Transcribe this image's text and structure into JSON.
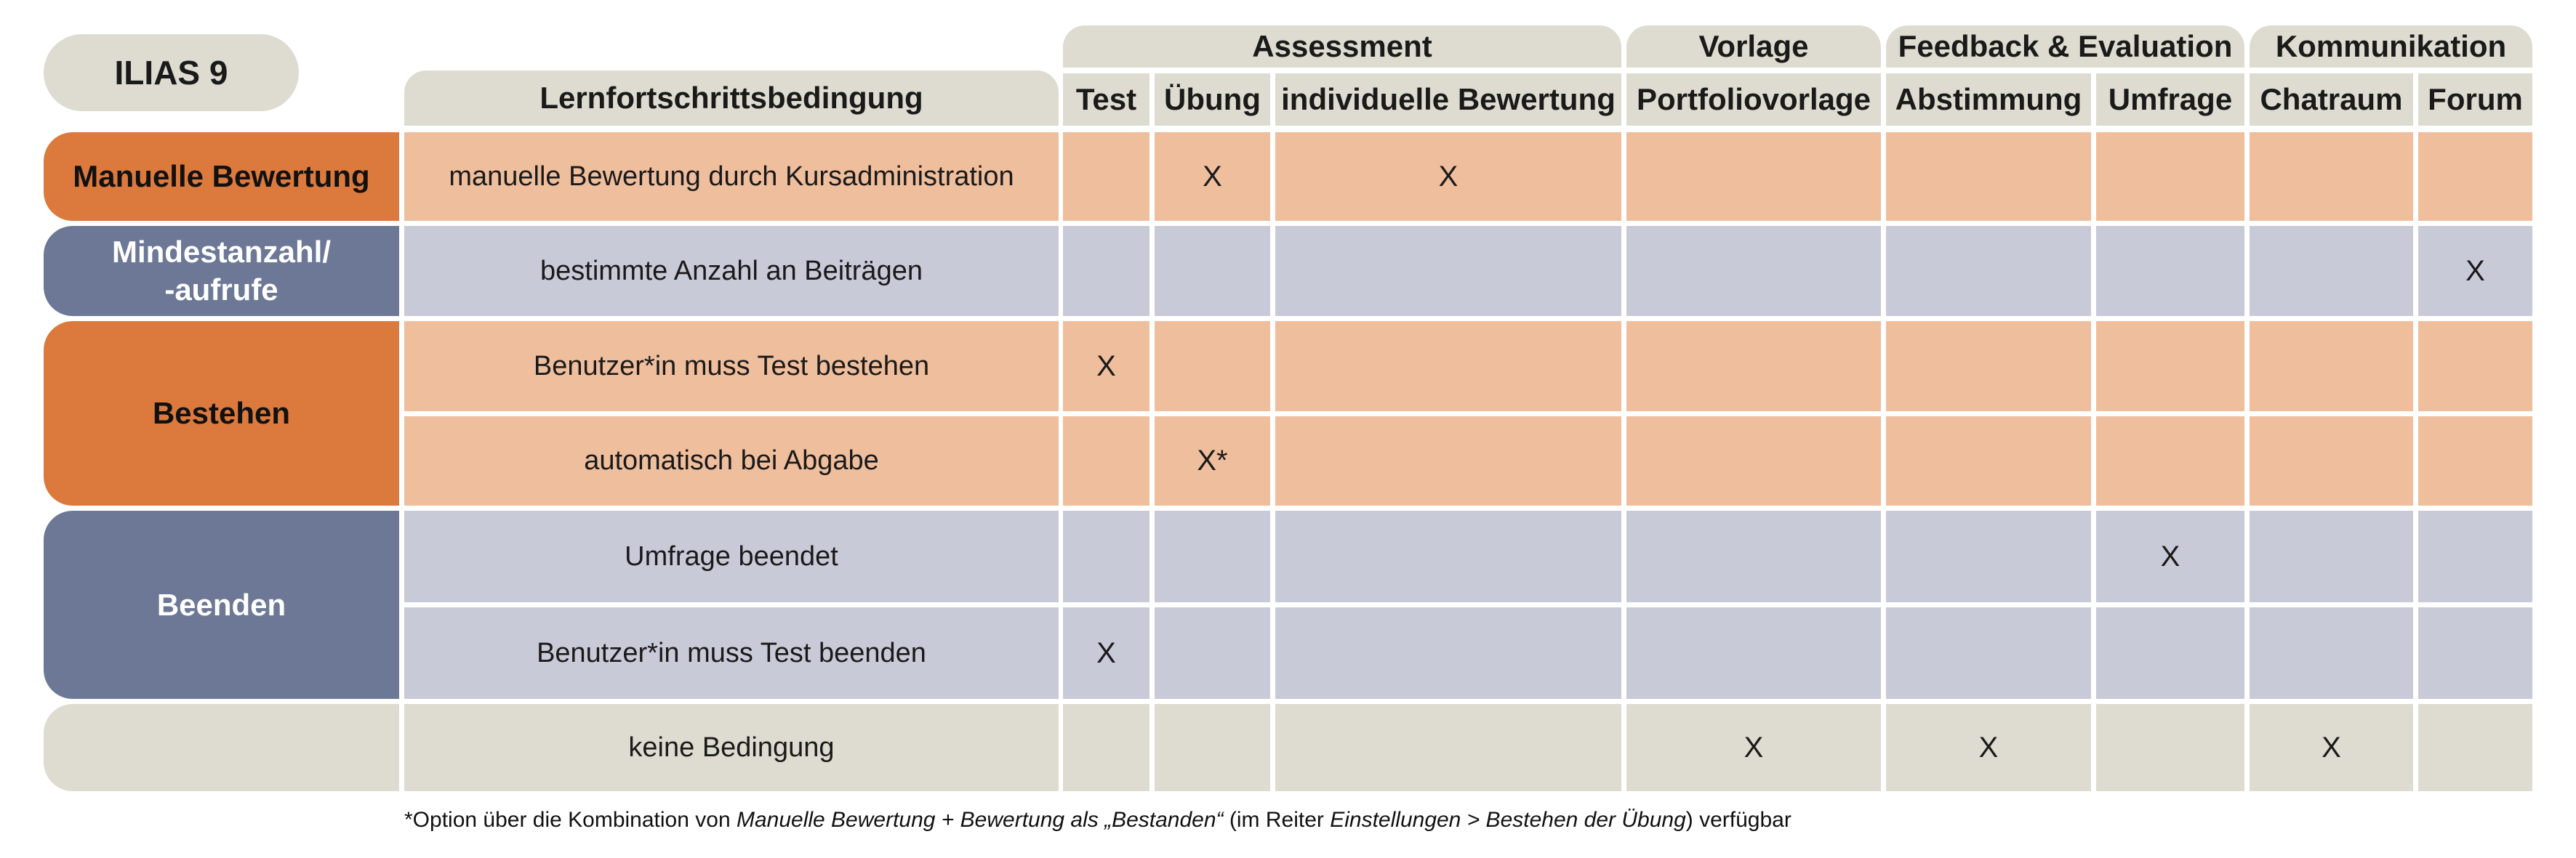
{
  "logo": "ILIAS 9",
  "header": {
    "condition_column": "Lernfortschrittsbedingung",
    "groups": [
      {
        "label": "Assessment"
      },
      {
        "label": "Vorlage"
      },
      {
        "label": "Feedback & Evaluation"
      },
      {
        "label": "Kommunikation"
      }
    ],
    "columns": [
      "Test",
      "Übung",
      "individuelle Bewertung",
      "Portfoliovorlage",
      "Abstimmung",
      "Umfrage",
      "Chatraum",
      "Forum"
    ]
  },
  "categories": [
    {
      "label": "Manuelle Bewertung",
      "color": "#dc7a3e"
    },
    {
      "label_line1": "Mindestanzahl/",
      "label_line2": "-aufrufe",
      "color": "#6c7895"
    },
    {
      "label": "Bestehen",
      "color": "#dc7a3e"
    },
    {
      "label": "Beenden",
      "color": "#6c7895"
    },
    {
      "label": "",
      "color": "#dedcd0"
    }
  ],
  "rows": [
    {
      "condition": "manuelle Bewertung durch Kursadministration",
      "marks": [
        "",
        "X",
        "X",
        "",
        "",
        "",
        "",
        ""
      ]
    },
    {
      "condition": "bestimmte Anzahl an Beiträgen",
      "marks": [
        "",
        "",
        "",
        "",
        "",
        "",
        "",
        "X"
      ]
    },
    {
      "condition": "Benutzer*in muss Test bestehen",
      "marks": [
        "X",
        "",
        "",
        "",
        "",
        "",
        "",
        ""
      ]
    },
    {
      "condition": "automatisch bei Abgabe",
      "marks": [
        "",
        "X*",
        "",
        "",
        "",
        "",
        "",
        ""
      ]
    },
    {
      "condition": "Umfrage beendet",
      "marks": [
        "",
        "",
        "",
        "",
        "",
        "X",
        "",
        ""
      ]
    },
    {
      "condition": "Benutzer*in muss Test beenden",
      "marks": [
        "X",
        "",
        "",
        "",
        "",
        "",
        "",
        ""
      ]
    },
    {
      "condition": "keine Bedingung",
      "marks": [
        "",
        "",
        "",
        "X",
        "X",
        "",
        "X",
        ""
      ]
    }
  ],
  "footnote": {
    "p1": "*Option über die Kombination von ",
    "i1": "Manuelle Bewertung + Bewertung als „Bestanden“",
    "p2": " (im Reiter ",
    "i2": "Einstellungen > Bestehen der Übung",
    "p3": ") verfügbar"
  },
  "colors": {
    "orange_dark": "#dc7a3e",
    "orange_light": "#efbe9d",
    "blue_dark": "#6c7895",
    "blue_light": "#c9cad8",
    "beige": "#dedcd0"
  }
}
